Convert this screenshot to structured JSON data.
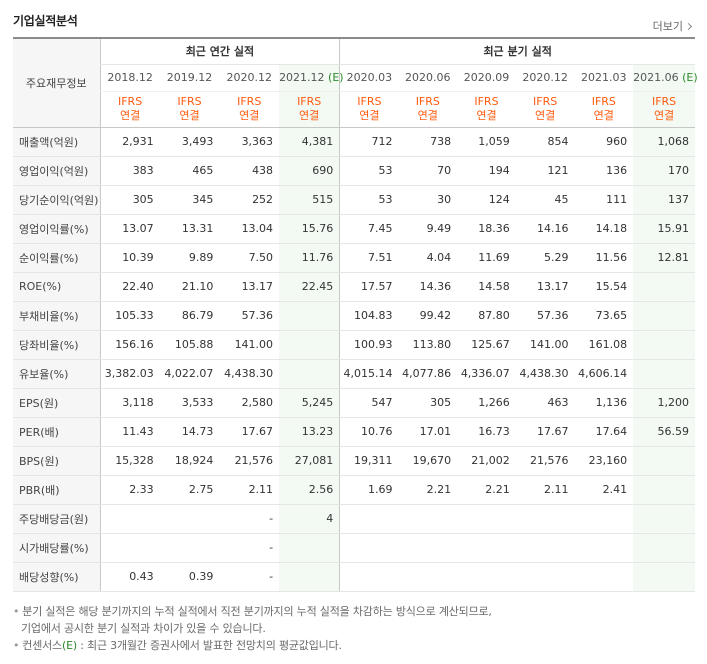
{
  "header": {
    "title": "기업실적분석",
    "more_label": "더보기"
  },
  "table": {
    "corner_label": "주요재무정보",
    "annual_label": "최근 연간 실적",
    "quarter_label": "최근 분기 실적",
    "annual_periods": [
      "2018.12",
      "2019.12",
      "2020.12",
      "2021.12"
    ],
    "annual_est_suffix": "(E)",
    "quarter_periods": [
      "2020.03",
      "2020.06",
      "2020.09",
      "2020.12",
      "2021.03",
      "2021.06"
    ],
    "quarter_est_suffix": "(E)",
    "standard_top": "IFRS",
    "standard_bottom": "연결",
    "rows": [
      {
        "label": "매출액(억원)",
        "values": [
          "2,931",
          "3,493",
          "3,363",
          "4,381",
          "712",
          "738",
          "1,059",
          "854",
          "960",
          "1,068"
        ]
      },
      {
        "label": "영업이익(억원)",
        "values": [
          "383",
          "465",
          "438",
          "690",
          "53",
          "70",
          "194",
          "121",
          "136",
          "170"
        ]
      },
      {
        "label": "당기순이익(억원)",
        "values": [
          "305",
          "345",
          "252",
          "515",
          "53",
          "30",
          "124",
          "45",
          "111",
          "137"
        ]
      },
      {
        "label": "영업이익률(%)",
        "values": [
          "13.07",
          "13.31",
          "13.04",
          "15.76",
          "7.45",
          "9.49",
          "18.36",
          "14.16",
          "14.18",
          "15.91"
        ]
      },
      {
        "label": "순이익률(%)",
        "values": [
          "10.39",
          "9.89",
          "7.50",
          "11.76",
          "7.51",
          "4.04",
          "11.69",
          "5.29",
          "11.56",
          "12.81"
        ]
      },
      {
        "label": "ROE(%)",
        "values": [
          "22.40",
          "21.10",
          "13.17",
          "22.45",
          "17.57",
          "14.36",
          "14.58",
          "13.17",
          "15.54",
          ""
        ]
      },
      {
        "label": "부채비율(%)",
        "values": [
          "105.33",
          "86.79",
          "57.36",
          "",
          "104.83",
          "99.42",
          "87.80",
          "57.36",
          "73.65",
          ""
        ]
      },
      {
        "label": "당좌비율(%)",
        "values": [
          "156.16",
          "105.88",
          "141.00",
          "",
          "100.93",
          "113.80",
          "125.67",
          "141.00",
          "161.08",
          ""
        ]
      },
      {
        "label": "유보율(%)",
        "values": [
          "3,382.03",
          "4,022.07",
          "4,438.30",
          "",
          "4,015.14",
          "4,077.86",
          "4,336.07",
          "4,438.30",
          "4,606.14",
          ""
        ]
      },
      {
        "label": "EPS(원)",
        "values": [
          "3,118",
          "3,533",
          "2,580",
          "5,245",
          "547",
          "305",
          "1,266",
          "463",
          "1,136",
          "1,200"
        ]
      },
      {
        "label": "PER(배)",
        "values": [
          "11.43",
          "14.73",
          "17.67",
          "13.23",
          "10.76",
          "17.01",
          "16.73",
          "17.67",
          "17.64",
          "56.59"
        ]
      },
      {
        "label": "BPS(원)",
        "values": [
          "15,328",
          "18,924",
          "21,576",
          "27,081",
          "19,311",
          "19,670",
          "21,002",
          "21,576",
          "23,160",
          ""
        ]
      },
      {
        "label": "PBR(배)",
        "values": [
          "2.33",
          "2.75",
          "2.11",
          "2.56",
          "1.69",
          "2.21",
          "2.21",
          "2.11",
          "2.41",
          ""
        ]
      },
      {
        "label": "주당배당금(원)",
        "values": [
          "",
          "",
          "-",
          "4",
          "",
          "",
          "",
          "",
          "",
          ""
        ]
      },
      {
        "label": "시가배당률(%)",
        "values": [
          "",
          "",
          "-",
          "",
          "",
          "",
          "",
          "",
          "",
          ""
        ]
      },
      {
        "label": "배당성향(%)",
        "values": [
          "0.43",
          "0.39",
          "-",
          "",
          "",
          "",
          "",
          "",
          "",
          ""
        ]
      }
    ]
  },
  "notes": {
    "line1": "분기 실적은 해당 분기까지의 누적 실적에서 직전 분기까지의 누적 실적을 차감하는 방식으로 계산되므로,",
    "line2": "기업에서 공시한 분기 실적과 차이가 있을 수 있습니다.",
    "line3_pre": "컨센서스",
    "line3_e": "(E)",
    "line3_post": " : 최근 3개월간 증권사에서 발표한 전망치의 평균값입니다."
  },
  "colors": {
    "accent": "#ff5a0e",
    "estimate_text": "#2b8a2b",
    "estimate_bg": "#f3faf3"
  }
}
